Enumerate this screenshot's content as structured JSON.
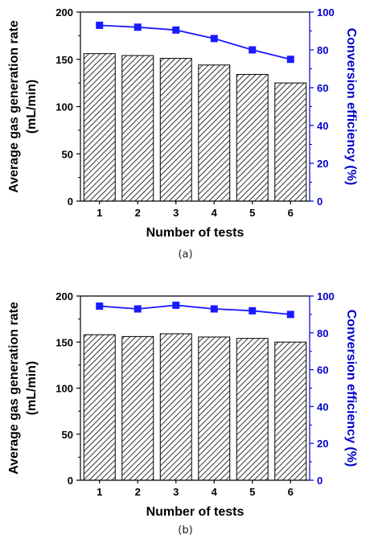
{
  "colors": {
    "bar_stroke": "#000000",
    "hatch": "#000000",
    "line": "#1a1aff",
    "marker": "#1a1aff",
    "right_axis": "#0000cc",
    "left_axis": "#000000"
  },
  "chart_data": [
    {
      "panel_id": "a",
      "caption": "(a)",
      "type": "bar",
      "categories": [
        "1",
        "2",
        "3",
        "4",
        "5",
        "6"
      ],
      "xlabel": "Number of tests",
      "ylabel_line1": "Average gas generation rate",
      "ylabel_line2": "(mL/min)",
      "ylim": [
        0,
        200
      ],
      "yticks": [
        "0",
        "50",
        "100",
        "150",
        "200"
      ],
      "values": [
        156,
        154,
        151,
        144,
        134,
        125
      ],
      "y2label": "Conversion efficiency (%)",
      "y2lim": [
        0,
        100
      ],
      "y2ticks": [
        "0",
        "20",
        "40",
        "60",
        "80",
        "100"
      ],
      "line_values": [
        93,
        92,
        90.5,
        86,
        80,
        75
      ]
    },
    {
      "panel_id": "b",
      "caption": "(b)",
      "type": "bar",
      "categories": [
        "1",
        "2",
        "3",
        "4",
        "5",
        "6"
      ],
      "xlabel": "Number of tests",
      "ylabel_line1": "Average gas generation rate",
      "ylabel_line2": "(mL/min)",
      "ylim": [
        0,
        200
      ],
      "yticks": [
        "0",
        "50",
        "100",
        "150",
        "200"
      ],
      "values": [
        158,
        156,
        159,
        155.5,
        154,
        150
      ],
      "y2label": "Conversion efficiency (%)",
      "y2lim": [
        0,
        100
      ],
      "y2ticks": [
        "0",
        "20",
        "40",
        "60",
        "80",
        "100"
      ],
      "line_values": [
        94.5,
        93,
        95,
        93,
        92,
        90
      ]
    }
  ]
}
